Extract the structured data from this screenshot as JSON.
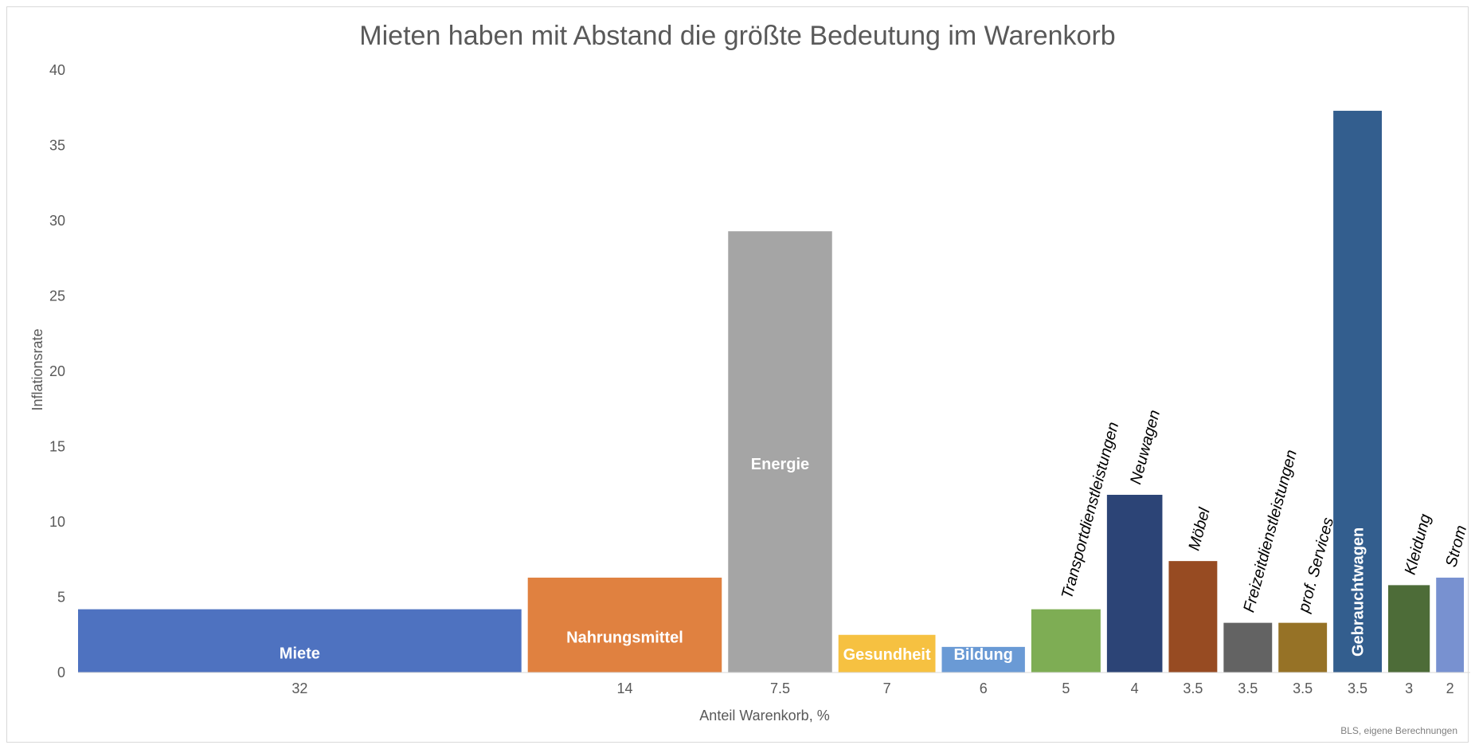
{
  "chart_data": {
    "type": "bar",
    "title": "Mieten haben mit Abstand die größte Bedeutung im Warenkorb",
    "xlabel": "Anteil Warenkorb, %",
    "ylabel": "Inflationsrate",
    "source": "BLS, eigene Berechnungen",
    "ylim": [
      0,
      40
    ],
    "yticks": [
      "0",
      "5",
      "10",
      "15",
      "20",
      "25",
      "30",
      "35",
      "40"
    ],
    "bars": [
      {
        "name": "Miete",
        "weight": 32,
        "weight_label": "32",
        "value": 4.2,
        "color": "#4e72c0",
        "label_style": "inside"
      },
      {
        "name": "Nahrungsmittel",
        "weight": 14,
        "weight_label": "14",
        "value": 6.3,
        "color": "#e08140",
        "label_style": "inside"
      },
      {
        "name": "Energie",
        "weight": 7.5,
        "weight_label": "7.5",
        "value": 29.3,
        "color": "#a5a5a5",
        "label_style": "inside"
      },
      {
        "name": "Gesundheit",
        "weight": 7,
        "weight_label": "7",
        "value": 2.5,
        "color": "#f6c141",
        "label_style": "inside"
      },
      {
        "name": "Bildung",
        "weight": 6,
        "weight_label": "6",
        "value": 1.7,
        "color": "#6a9ad5",
        "label_style": "inside"
      },
      {
        "name": "Transportdienstleistungen",
        "weight": 5,
        "weight_label": "5",
        "value": 4.2,
        "color": "#7ead54",
        "label_style": "above"
      },
      {
        "name": "Neuwagen",
        "weight": 4,
        "weight_label": "4",
        "value": 11.8,
        "color": "#2c4476",
        "label_style": "above"
      },
      {
        "name": "Möbel",
        "weight": 3.5,
        "weight_label": "3.5",
        "value": 7.4,
        "color": "#974b22",
        "label_style": "above"
      },
      {
        "name": "Freizeitdienstleistungen",
        "weight": 3.5,
        "weight_label": "3.5",
        "value": 3.3,
        "color": "#636363",
        "label_style": "above"
      },
      {
        "name": "prof. Services",
        "weight": 3.5,
        "weight_label": "3.5",
        "value": 3.3,
        "color": "#967226",
        "label_style": "above"
      },
      {
        "name": "Gebrauchtwagen",
        "weight": 3.5,
        "weight_label": "3.5",
        "value": 37.3,
        "color": "#335e8e",
        "label_style": "inside-vertical"
      },
      {
        "name": "Kleidung",
        "weight": 3,
        "weight_label": "3",
        "value": 5.8,
        "color": "#4d6c38",
        "label_style": "above"
      },
      {
        "name": "Strom",
        "weight": 2,
        "weight_label": "2",
        "value": 6.3,
        "color": "#7891d0",
        "label_style": "above"
      }
    ],
    "grid": false,
    "legend": "none"
  }
}
